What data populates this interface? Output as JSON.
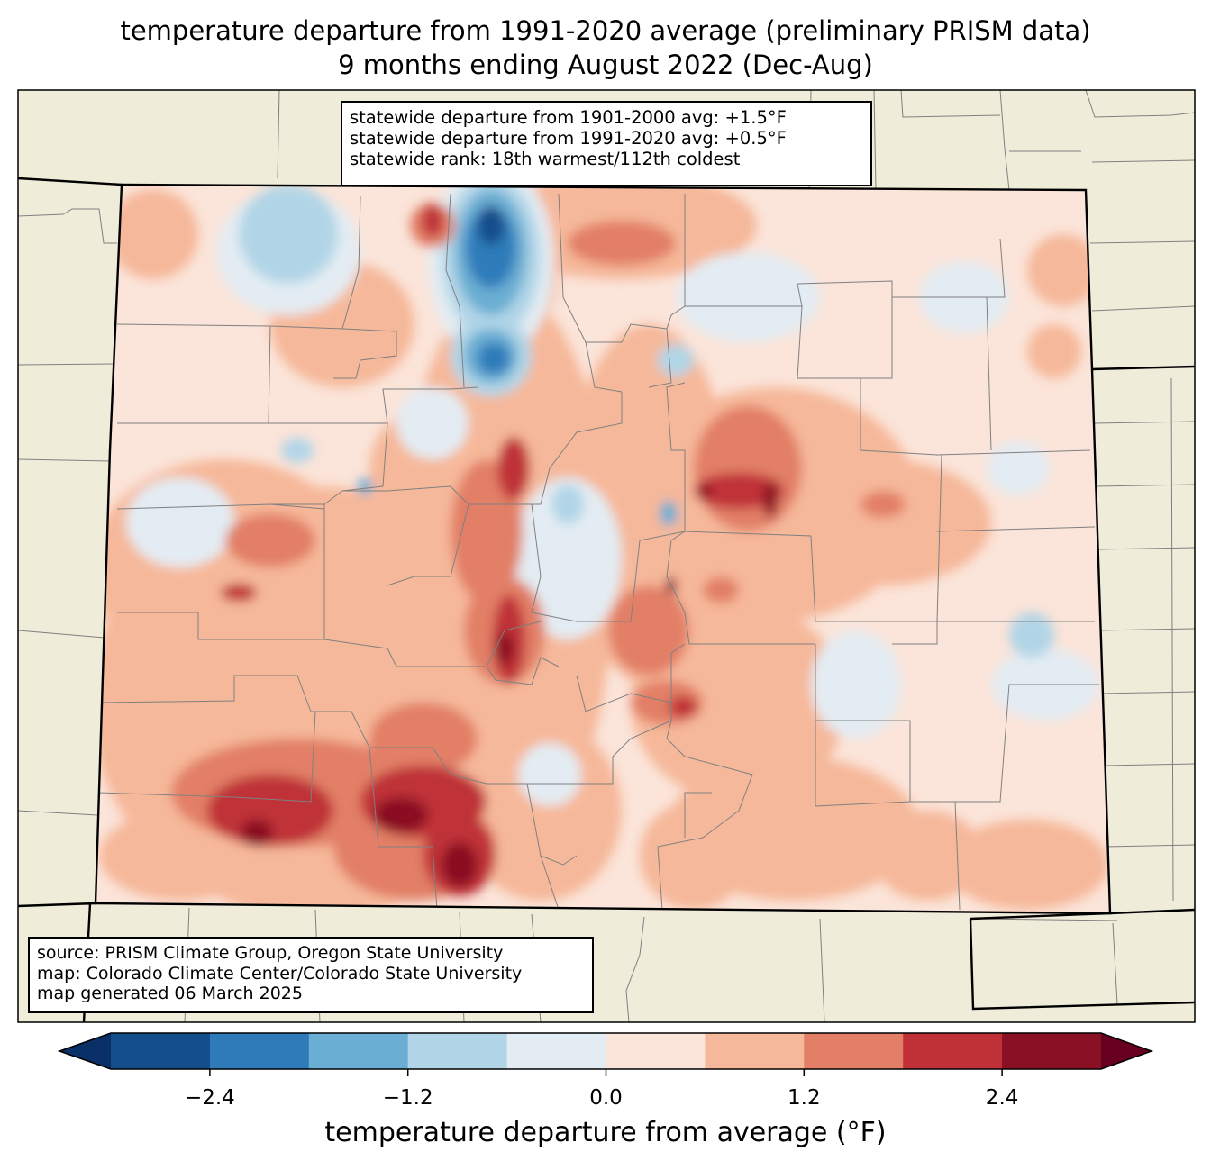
{
  "title": {
    "line1": "temperature departure from 1991-2020 average (preliminary PRISM data)",
    "line2": "9 months ending August 2022 (Dec-Aug)"
  },
  "stats": {
    "line1": "statewide departure from 1901-2000 avg: +1.5°F",
    "line2": "statewide departure from 1991-2020 avg: +0.5°F",
    "line3": "statewide rank: 18th warmest/112th coldest"
  },
  "credits": {
    "source": "source: PRISM Climate Group, Oregon State University",
    "map": "map: Colorado Climate Center/Colorado State University",
    "generated": "map generated 06 March 2025"
  },
  "colorbar": {
    "label": "temperature departure from average (°F)",
    "ticks": [
      "−2.4",
      "−1.2",
      "0.0",
      "1.2",
      "2.4"
    ],
    "tick_values": [
      -2.4,
      -1.2,
      0.0,
      1.2,
      2.4
    ],
    "range": [
      -3.0,
      3.0
    ],
    "step": 0.6,
    "colors": [
      "#134d8a",
      "#2f7bba",
      "#6aaed3",
      "#b1d5e7",
      "#e3ecf3",
      "#fbe4d9",
      "#f6b89a",
      "#e27f66",
      "#bf3137",
      "#8a1023"
    ],
    "under_color": "#0a3068",
    "over_color": "#67001f"
  },
  "map_colors": {
    "land": "#efecda",
    "border": "#000000",
    "county_line": "#808080",
    "frame": "#000000"
  }
}
